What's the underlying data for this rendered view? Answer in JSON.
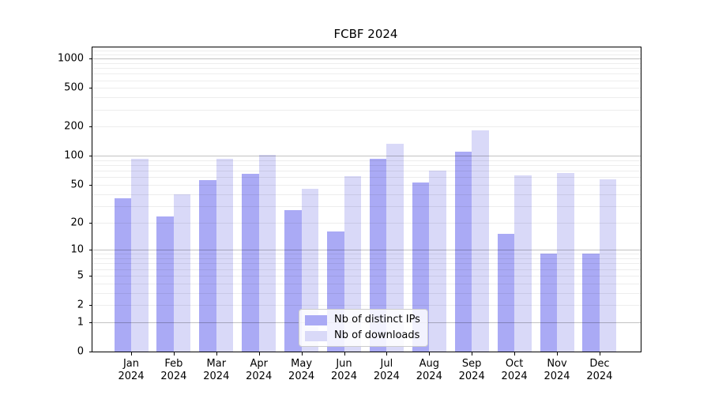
{
  "chart_data": {
    "type": "bar",
    "title": "FCBF 2024",
    "categories": [
      "Jan",
      "Feb",
      "Mar",
      "Apr",
      "May",
      "Jun",
      "Jul",
      "Aug",
      "Sep",
      "Oct",
      "Nov",
      "Dec"
    ],
    "x_year_label": "2024",
    "series": [
      {
        "name": "Nb of distinct IPs",
        "color": "#aaaaf5",
        "values": [
          36,
          23,
          56,
          65,
          27,
          16,
          93,
          53,
          110,
          15,
          9,
          9
        ]
      },
      {
        "name": "Nb of downloads",
        "color": "#d9d9f8",
        "values": [
          93,
          40,
          94,
          102,
          45,
          61,
          133,
          70,
          182,
          63,
          67,
          57
        ]
      }
    ],
    "yticks": [
      0,
      1,
      2,
      5,
      10,
      20,
      50,
      100,
      200,
      500,
      1000
    ],
    "ylim": [
      0,
      1300
    ],
    "yscale": "log1p",
    "grid": true,
    "legend_position": "lower center",
    "colors": {
      "major_grid": "#c2c2c2",
      "minor_grid": "#ececec",
      "axis": "#000000",
      "background": "#ffffff"
    }
  }
}
